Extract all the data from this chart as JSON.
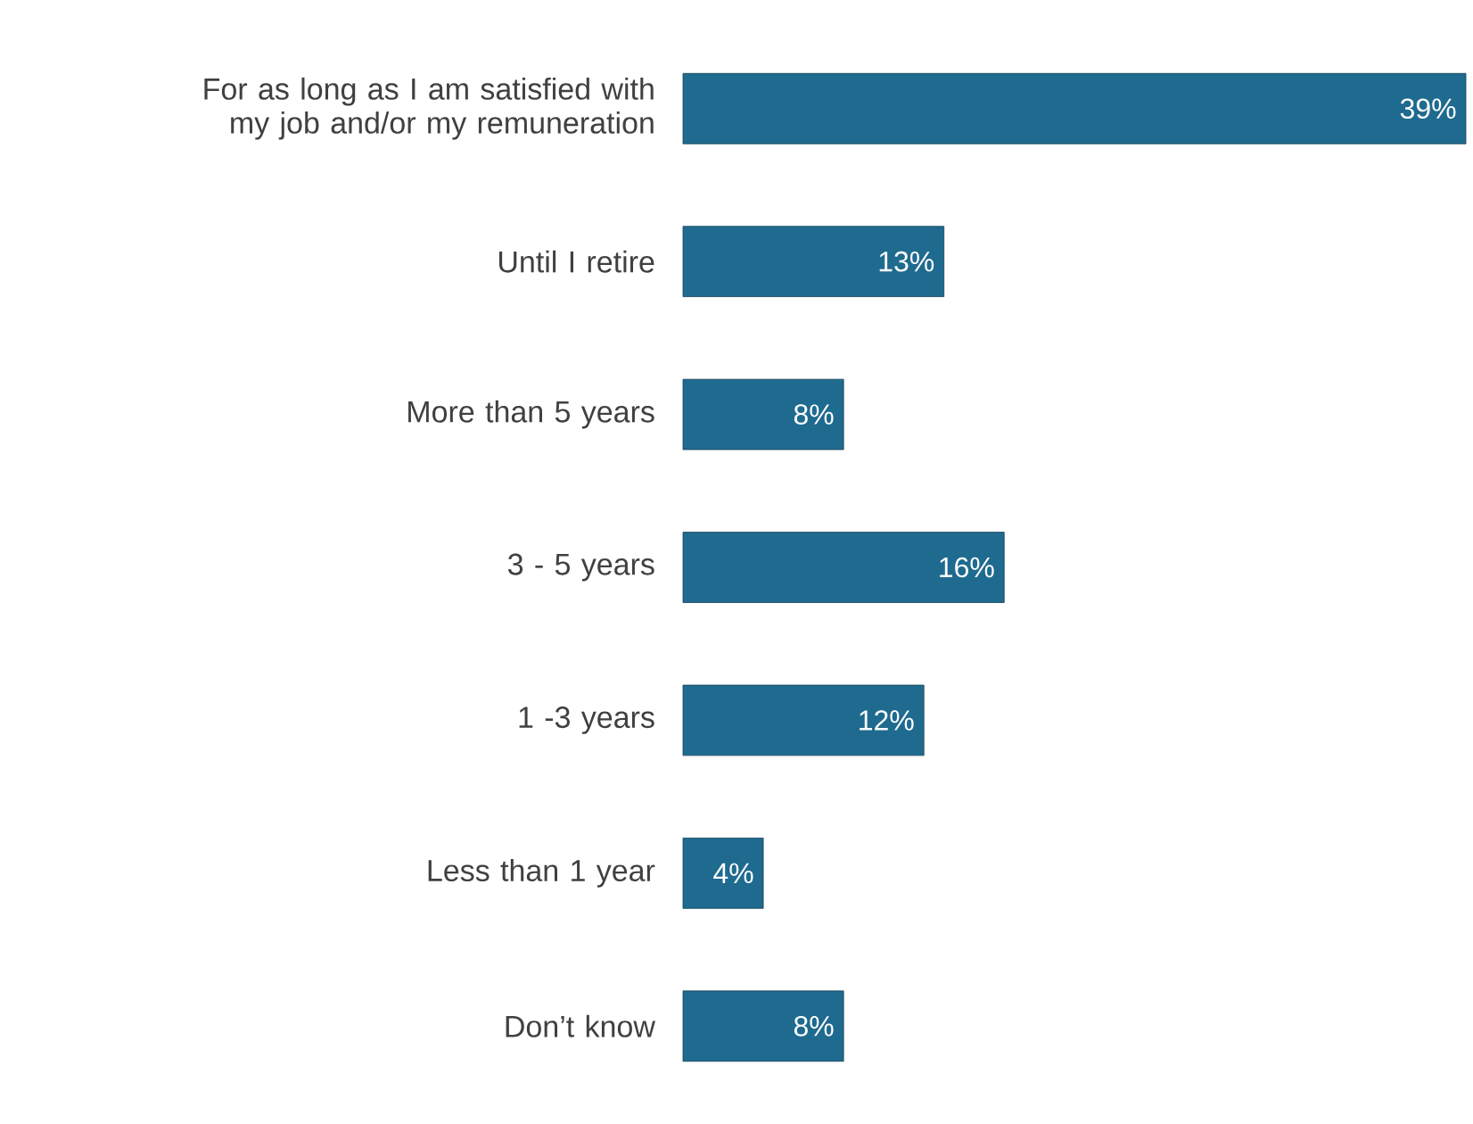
{
  "chart_data": {
    "type": "bar",
    "orientation": "horizontal",
    "categories": [
      "For as long as I am satisfied with my job and/or my remuneration",
      "Until I retire",
      "More than 5 years",
      "3 - 5 years",
      "1 -3 years",
      "Less than 1 year",
      "Don’t know"
    ],
    "values": [
      39,
      13,
      8,
      16,
      12,
      4,
      8
    ],
    "value_labels": [
      "39%",
      "13%",
      "8%",
      "16%",
      "12%",
      "4%",
      "8%"
    ],
    "color": "#1f6a8f",
    "tick_labels": "y"
  }
}
